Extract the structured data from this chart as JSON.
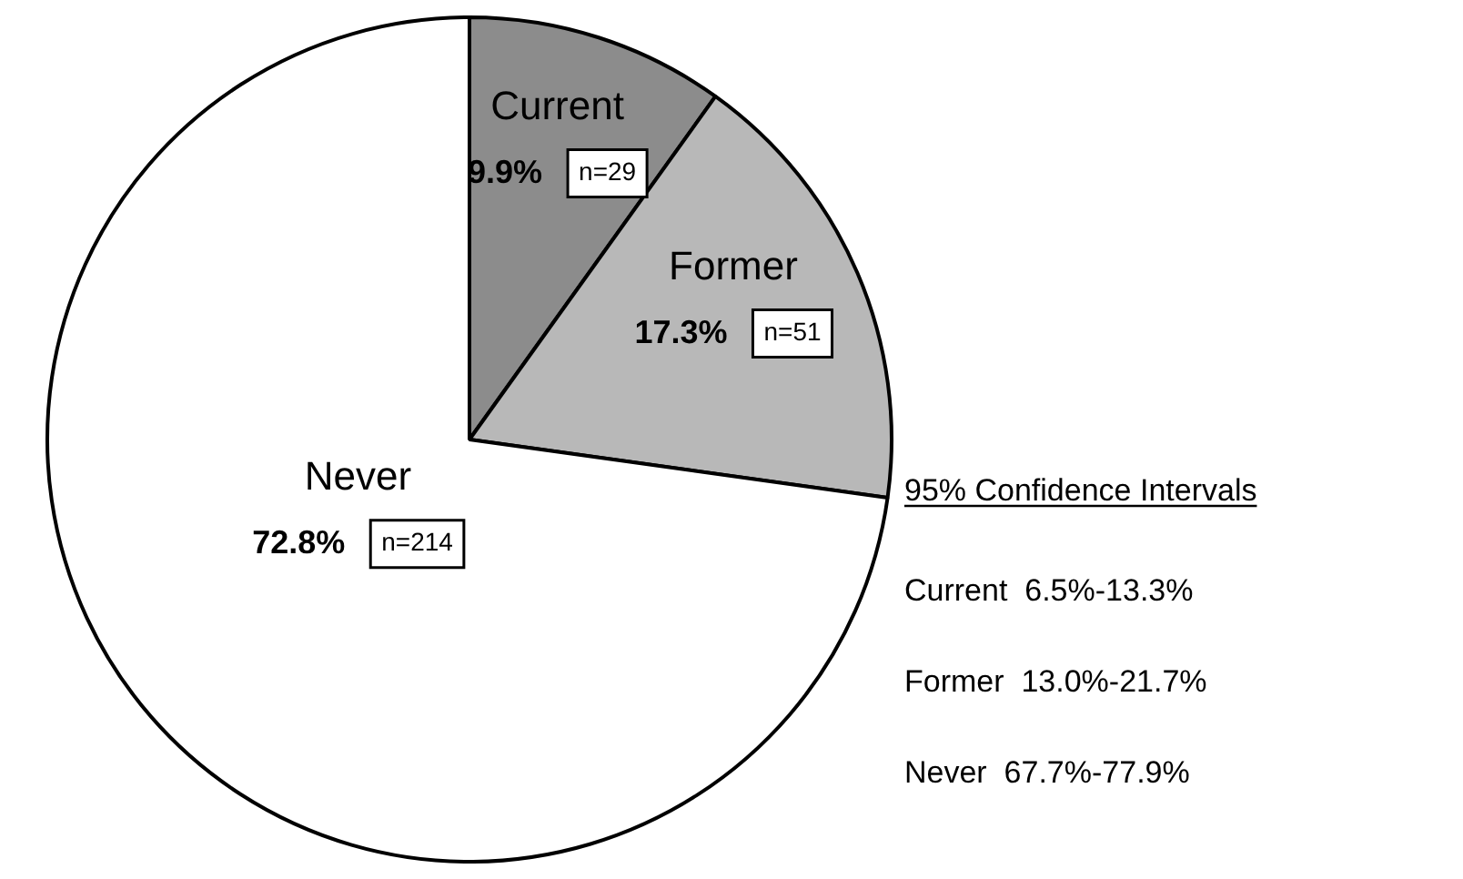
{
  "chart_data": {
    "type": "pie",
    "categories": [
      "Current",
      "Former",
      "Never"
    ],
    "values": [
      9.9,
      17.3,
      72.8
    ],
    "colors": [
      "#8c8c8c",
      "#b8b8b8",
      "#ffffff"
    ],
    "value_labels": [
      "9.9%",
      "17.3%",
      "72.8%"
    ],
    "annotations": [
      "n=29",
      "n=51",
      "n=214",
      "95% Confidence Intervals",
      "Current  6.5%-13.3%",
      "Former  13.0%-21.7%",
      "Never  67.7%-77.9%"
    ]
  }
}
